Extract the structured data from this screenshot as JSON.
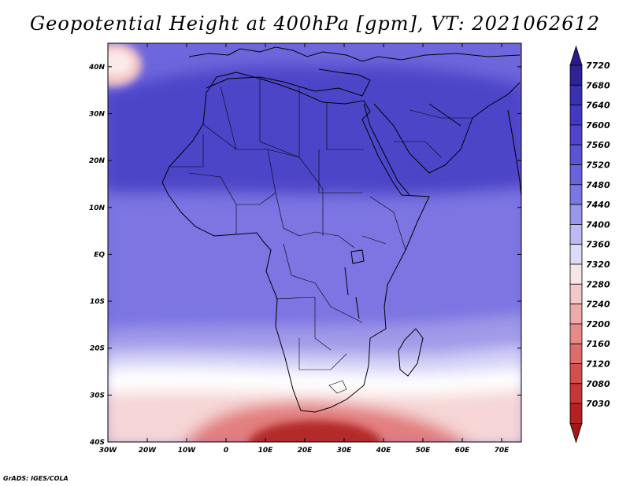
{
  "title": "Geopotential Height at 400hPa [gpm], VT: 2021062612",
  "credit": "GrADS: IGES/COLA",
  "axes": {
    "lon_labels": [
      "30W",
      "20W",
      "10W",
      "0",
      "10E",
      "20E",
      "30E",
      "40E",
      "50E",
      "60E",
      "70E"
    ],
    "lat_labels": [
      "40N",
      "30N",
      "20N",
      "10N",
      "EQ",
      "10S",
      "20S",
      "30S",
      "40S"
    ]
  },
  "colorbar": {
    "labels": [
      "7720",
      "7680",
      "7640",
      "7600",
      "7560",
      "7520",
      "7480",
      "7440",
      "7400",
      "7360",
      "7320",
      "7280",
      "7240",
      "7200",
      "7160",
      "7120",
      "7080",
      "7030"
    ],
    "colors": [
      "#2e2296",
      "#3a30b4",
      "#4538c4",
      "#5044cc",
      "#5c52d4",
      "#6a62dc",
      "#7c76e4",
      "#9a96ec",
      "#bcbaf4",
      "#dcdcfa",
      "#f8e6e6",
      "#f4c8c8",
      "#eeaaaa",
      "#e68a8a",
      "#de6c6c",
      "#d44e4e",
      "#c83636",
      "#b62222"
    ],
    "top_color": "#2a1a8a",
    "bottom_color": "#a01818"
  },
  "field": {
    "base_color": "#6e66dc",
    "north_max_color": "#4e44c8",
    "tropic_color": "#7c74e2",
    "south_light_color": "#a09ae8",
    "south_lighter_color": "#d4d2f6",
    "white_band_color": "#ffffff",
    "pink_color": "#f6d6d6",
    "red_low_color": "#e27e7e",
    "red_core_color": "#b42a2a",
    "nw_pink_color": "#f4c4c4"
  }
}
